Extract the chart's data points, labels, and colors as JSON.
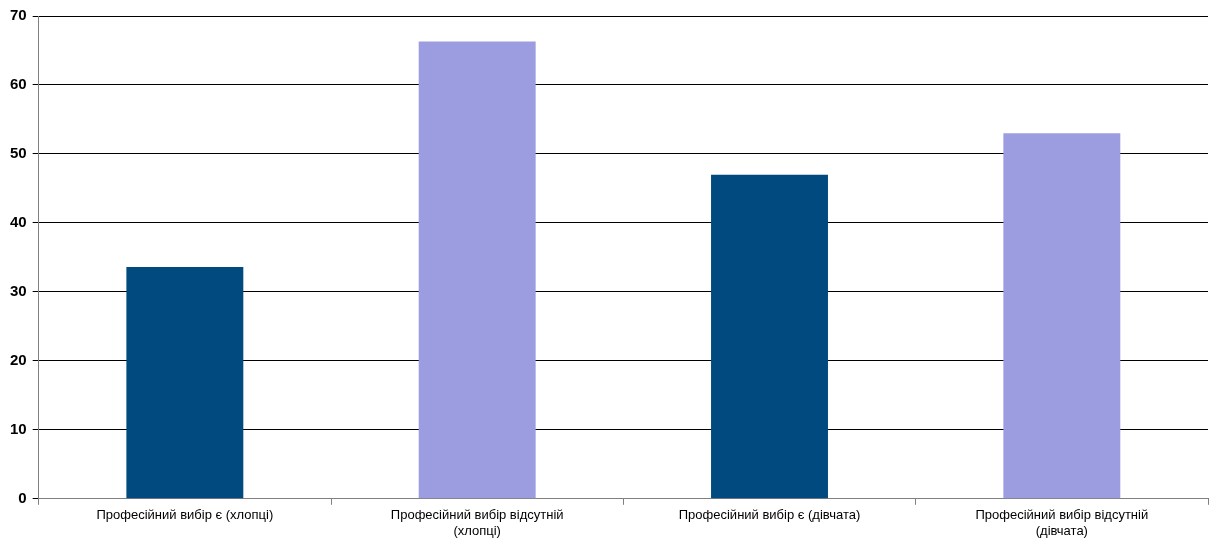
{
  "chart_data": {
    "type": "bar",
    "categories": [
      "Професійний вибір є (хлопці)",
      "Професійний вибір відсутній (хлопці)",
      "Професійний вибір є (дівчата)",
      "Професійний вибір відсутній (дівчата)"
    ],
    "values": [
      33.6,
      66.3,
      47,
      53
    ],
    "colors": [
      "#004a80",
      "#9c9ce0",
      "#004a80",
      "#9c9ce0"
    ],
    "ylim": [
      0,
      70
    ],
    "yticks": [
      0,
      10,
      20,
      30,
      40,
      50,
      60,
      70
    ],
    "grid": "y"
  }
}
